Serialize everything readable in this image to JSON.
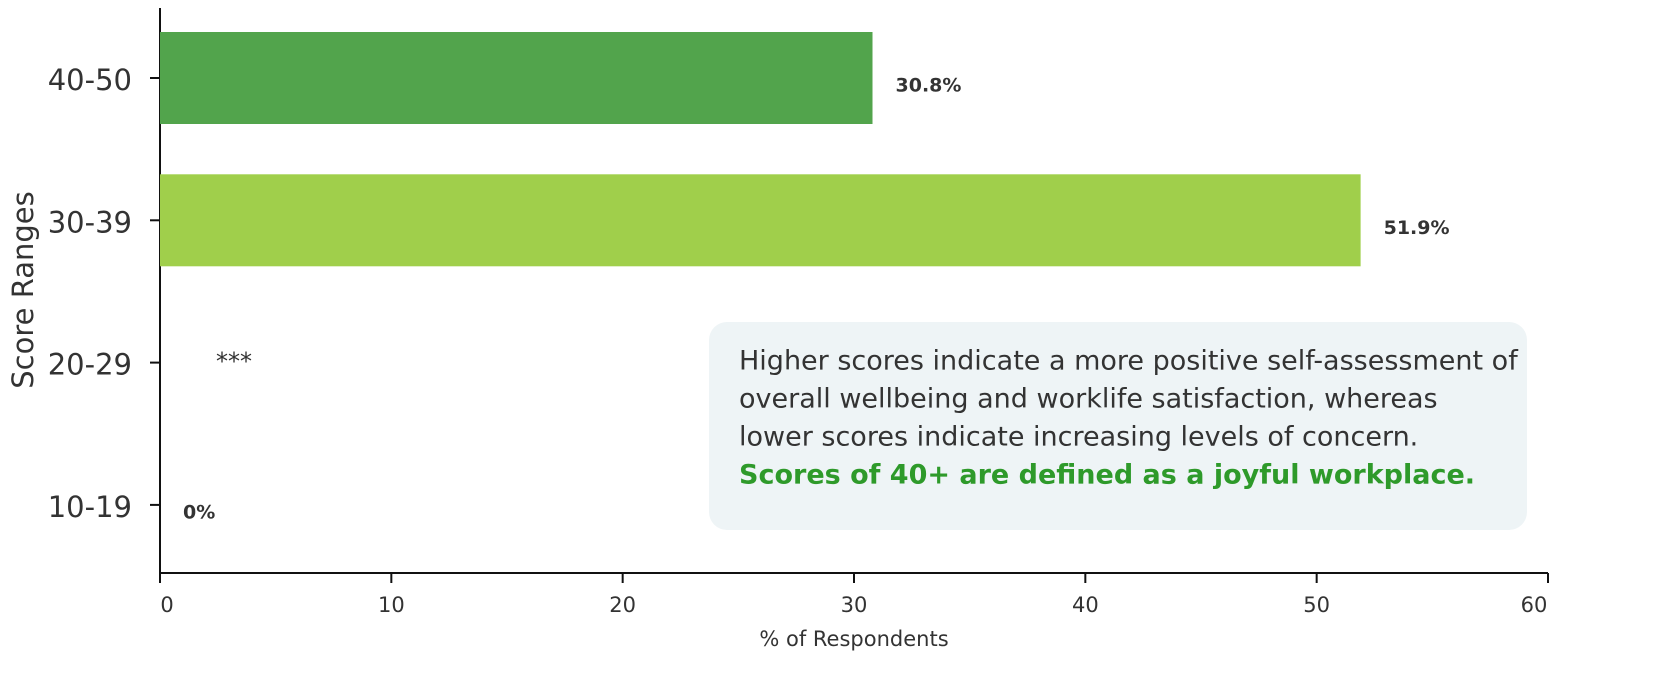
{
  "chart_data": {
    "type": "hbar",
    "y_label": "Score Ranges",
    "x_label": "% of Respondents",
    "categories": [
      "40-50",
      "30-39",
      "20-29",
      "10-19"
    ],
    "values": [
      30.8,
      51.9,
      null,
      0
    ],
    "value_labels": [
      "30.8%",
      "51.9%",
      "***",
      "0%"
    ],
    "colors": [
      "#52a44c",
      "#a0cf4b",
      "#52a44c",
      "#52a44c"
    ],
    "xlim": [
      0,
      60
    ],
    "xticks": [
      0,
      10,
      20,
      30,
      40,
      50,
      60
    ],
    "annotation": {
      "lines": [
        "Higher scores indicate a more positive self-assessment of",
        "overall wellbeing and worklife satisfaction, whereas",
        "lower scores indicate increasing levels of concern."
      ],
      "highlight": "Scores of 40+ are defined as a joyful workplace."
    }
  }
}
